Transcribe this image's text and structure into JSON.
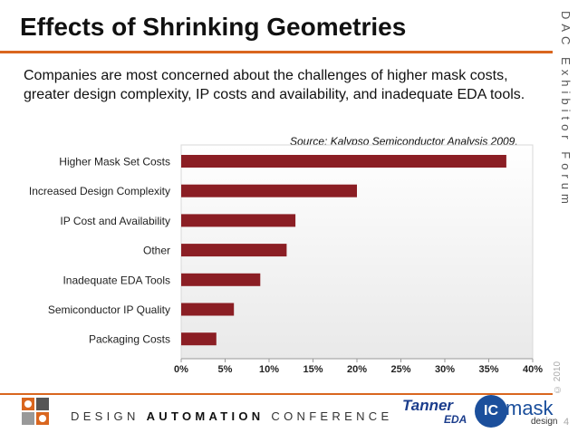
{
  "slide": {
    "title": "Effects of Shrinking Geometries",
    "side_label": "DAC Exhibitor Forum",
    "copyright": "© 2010",
    "body": "Companies are most concerned about the challenges of higher mask costs, greater design complexity, IP costs and availability, and inadequate EDA tools.",
    "source": "Source: Kalypso Semiconductor Analysis 2009.",
    "page_number": "4"
  },
  "footer": {
    "design": "DESIGN",
    "automation": "AUTOMATION",
    "conference": "CONFERENCE",
    "tanner": "Tanner",
    "tanner_eda": "EDA",
    "icmask_ic": "IC",
    "icmask_word": "mask",
    "icmask_sub": "design"
  },
  "colors": {
    "bar": "#8b1e24",
    "accent": "#d9661f"
  },
  "chart_data": {
    "type": "bar",
    "orientation": "horizontal",
    "categories": [
      "Higher Mask Set Costs",
      "Increased Design Complexity",
      "IP Cost and Availability",
      "Other",
      "Inadequate EDA Tools",
      "Semiconductor IP Quality",
      "Packaging Costs"
    ],
    "values": [
      37,
      20,
      13,
      12,
      9,
      6,
      4
    ],
    "ticks": [
      "0%",
      "5%",
      "10%",
      "15%",
      "20%",
      "25%",
      "30%",
      "35%",
      "40%"
    ],
    "xlim": [
      0,
      40
    ],
    "title": "",
    "xlabel": "",
    "ylabel": "",
    "grid": false
  }
}
